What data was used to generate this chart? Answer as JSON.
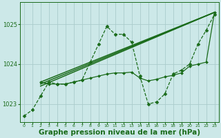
{
  "background_color": "#cce8e8",
  "grid_color": "#aacccc",
  "line_color": "#1a6b1a",
  "xlabel": "Graphe pression niveau de la mer (hPa)",
  "xlabel_fontsize": 7.5,
  "ylabel_ticks": [
    1023,
    1024,
    1025
  ],
  "xlim": [
    -0.5,
    23.5
  ],
  "ylim": [
    1022.55,
    1025.55
  ],
  "x_ticks": [
    0,
    1,
    2,
    3,
    4,
    5,
    6,
    7,
    8,
    9,
    10,
    11,
    12,
    13,
    14,
    15,
    16,
    17,
    18,
    19,
    20,
    21,
    22,
    23
  ],
  "series": [
    {
      "x": [
        0,
        1,
        2,
        3,
        4,
        5,
        6,
        7,
        8,
        9,
        10,
        11,
        12,
        13,
        14,
        15,
        16,
        17,
        18,
        19,
        20,
        21,
        22,
        23
      ],
      "y": [
        1022.7,
        1022.85,
        1023.2,
        1023.55,
        1023.5,
        1023.5,
        1023.55,
        1023.6,
        1024.05,
        1024.5,
        1024.95,
        1024.75,
        1024.75,
        1024.55,
        1023.7,
        1023.0,
        1023.05,
        1023.25,
        1023.75,
        1023.85,
        1024.0,
        1024.5,
        1024.85,
        1025.25
      ],
      "marker": "D",
      "markersize": 2.5,
      "linewidth": 0.9,
      "linestyle": "--"
    },
    {
      "x": [
        2,
        23
      ],
      "y": [
        1023.55,
        1025.3
      ],
      "marker": null,
      "markersize": 0,
      "linewidth": 1.1,
      "linestyle": "-"
    },
    {
      "x": [
        2,
        23
      ],
      "y": [
        1023.5,
        1025.3
      ],
      "marker": null,
      "markersize": 0,
      "linewidth": 1.1,
      "linestyle": "-"
    },
    {
      "x": [
        2,
        23
      ],
      "y": [
        1023.45,
        1025.3
      ],
      "marker": null,
      "markersize": 0,
      "linewidth": 1.1,
      "linestyle": "-"
    },
    {
      "x": [
        2,
        3,
        4,
        5,
        6,
        7,
        8,
        9,
        10,
        11,
        12,
        13,
        14,
        15,
        16,
        17,
        18,
        19,
        20,
        21,
        22,
        23
      ],
      "y": [
        1023.55,
        1023.5,
        1023.5,
        1023.5,
        1023.55,
        1023.6,
        1023.65,
        1023.7,
        1023.75,
        1023.78,
        1023.78,
        1023.8,
        1023.65,
        1023.58,
        1023.62,
        1023.68,
        1023.72,
        1023.78,
        1023.95,
        1024.0,
        1024.05,
        1025.3
      ],
      "marker": "D",
      "markersize": 2.0,
      "linewidth": 0.9,
      "linestyle": "-"
    }
  ]
}
